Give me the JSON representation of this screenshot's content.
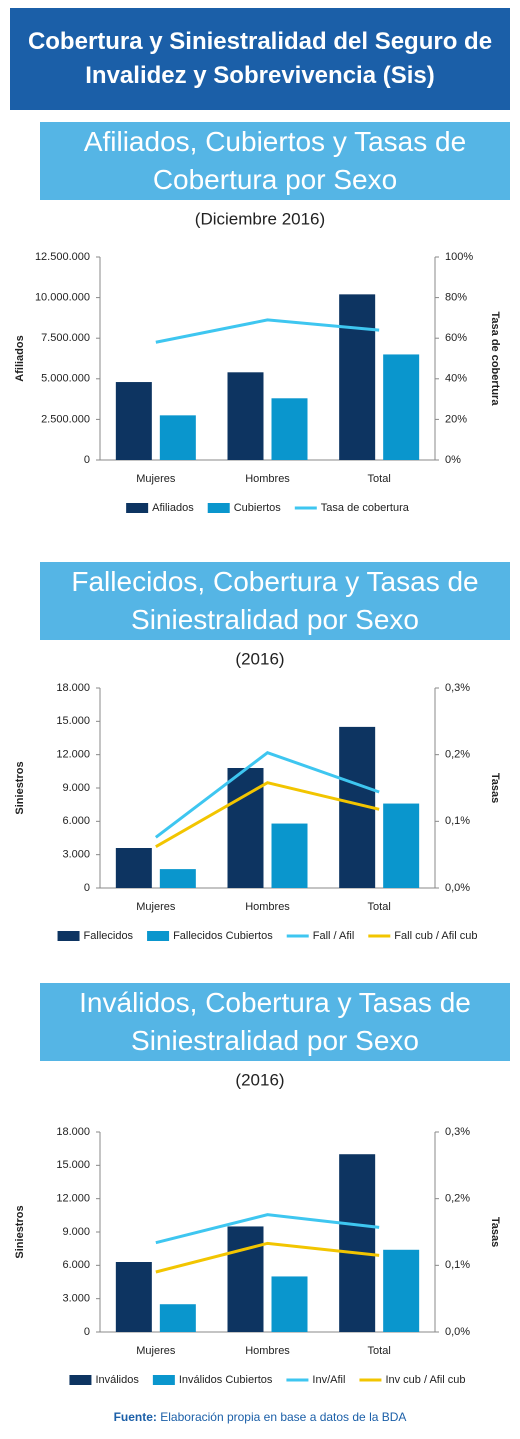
{
  "header": {
    "title": "Cobertura y Siniestralidad del Seguro de Invalidez y Sobrevivencia (Sis)"
  },
  "chart_data": [
    {
      "type": "bar",
      "title": "Afiliados, Cubiertos y Tasas de Cobertura por Sexo",
      "subtitle": "(Diciembre 2016)",
      "y_label": "Afiliados",
      "y2_label": "Tasa de cobertura",
      "categories": [
        "Mujeres",
        "Hombres",
        "Total"
      ],
      "series": [
        {
          "name": "Afiliados",
          "color": "#0d3461",
          "values": [
            4800000,
            5400000,
            10200000
          ]
        },
        {
          "name": "Cubiertos",
          "color": "#0a96cd",
          "values": [
            2750000,
            3800000,
            6500000
          ]
        },
        {
          "name": "Tasa de cobertura",
          "color": "#3ec6f0",
          "axis": "y2",
          "values": [
            58,
            69,
            64
          ]
        }
      ],
      "ylim": [
        0,
        12500000
      ],
      "yticks": [
        0,
        {
          "value": 2500000,
          "label": "2.500.000"
        },
        {
          "value": 5000000,
          "label": "5.000.000"
        },
        {
          "value": 7500000,
          "label": "7.500.000"
        },
        {
          "value": 10000000,
          "label": "10.000.000"
        },
        {
          "value": 12500000,
          "label": "12.500.000"
        }
      ],
      "y2lim": [
        0,
        100
      ],
      "y2ticks": [
        {
          "value": 0,
          "label": "0%"
        },
        {
          "value": 20,
          "label": "20%"
        },
        {
          "value": 40,
          "label": "40%"
        },
        {
          "value": 60,
          "label": "60%"
        },
        {
          "value": 80,
          "label": "80%"
        },
        {
          "value": 100,
          "label": "100%"
        }
      ]
    },
    {
      "type": "bar",
      "title": "Fallecidos, Cobertura y Tasas de Siniestralidad por Sexo",
      "subtitle": "(2016)",
      "y_label": "Siniestros",
      "y2_label": "Tasas",
      "categories": [
        "Mujeres",
        "Hombres",
        "Total"
      ],
      "series": [
        {
          "name": "Fallecidos",
          "color": "#0d3461",
          "values": [
            3600,
            10800,
            14500
          ]
        },
        {
          "name": "Fallecidos Cubiertos",
          "color": "#0a96cd",
          "values": [
            1700,
            5800,
            7600
          ]
        },
        {
          "name": "Fall / Afil",
          "color": "#3ec6f0",
          "axis": "y2",
          "values": [
            0.076,
            0.203,
            0.144
          ]
        },
        {
          "name": "Fall cub / Afil cub",
          "color": "#f2c500",
          "axis": "y2",
          "values": [
            0.062,
            0.158,
            0.118
          ]
        }
      ],
      "ylim": [
        0,
        18000
      ],
      "yticks": [
        0,
        {
          "value": 3000,
          "label": "3.000"
        },
        {
          "value": 6000,
          "label": "6.000"
        },
        {
          "value": 9000,
          "label": "9.000"
        },
        {
          "value": 12000,
          "label": "12.000"
        },
        {
          "value": 15000,
          "label": "15.000"
        },
        {
          "value": 18000,
          "label": "18.000"
        }
      ],
      "y2lim": [
        0,
        0.3
      ],
      "y2ticks": [
        {
          "value": 0,
          "label": "0,0%"
        },
        {
          "value": 0.1,
          "label": "0,1%"
        },
        {
          "value": 0.2,
          "label": "0,2%"
        },
        {
          "value": 0.3,
          "label": "0,3%"
        }
      ]
    },
    {
      "type": "bar",
      "title": "Inválidos, Cobertura y Tasas de Siniestralidad por Sexo",
      "subtitle": "(2016)",
      "y_label": "Siniestros",
      "y2_label": "Tasas",
      "categories": [
        "Mujeres",
        "Hombres",
        "Total"
      ],
      "series": [
        {
          "name": "Inválidos",
          "color": "#0d3461",
          "values": [
            6300,
            9500,
            16000
          ]
        },
        {
          "name": "Inválidos Cubiertos",
          "color": "#0a96cd",
          "values": [
            2500,
            5000,
            7400
          ]
        },
        {
          "name": "Inv/Afil",
          "color": "#3ec6f0",
          "axis": "y2",
          "values": [
            0.134,
            0.176,
            0.157
          ]
        },
        {
          "name": "Inv cub / Afil cub",
          "color": "#f2c500",
          "axis": "y2",
          "values": [
            0.09,
            0.133,
            0.115
          ]
        }
      ],
      "ylim": [
        0,
        18000
      ],
      "yticks": [
        0,
        {
          "value": 3000,
          "label": "3.000"
        },
        {
          "value": 6000,
          "label": "6.000"
        },
        {
          "value": 9000,
          "label": "9.000"
        },
        {
          "value": 12000,
          "label": "12.000"
        },
        {
          "value": 15000,
          "label": "15.000"
        },
        {
          "value": 18000,
          "label": "18.000"
        }
      ],
      "y2lim": [
        0,
        0.3
      ],
      "y2ticks": [
        {
          "value": 0,
          "label": "0,0%"
        },
        {
          "value": 0.1,
          "label": "0,1%"
        },
        {
          "value": 0.2,
          "label": "0,2%"
        },
        {
          "value": 0.3,
          "label": "0,3%"
        }
      ]
    }
  ],
  "footer": {
    "label": "Fuente:",
    "text": "Elaboración propia en base a datos de la BDA"
  }
}
